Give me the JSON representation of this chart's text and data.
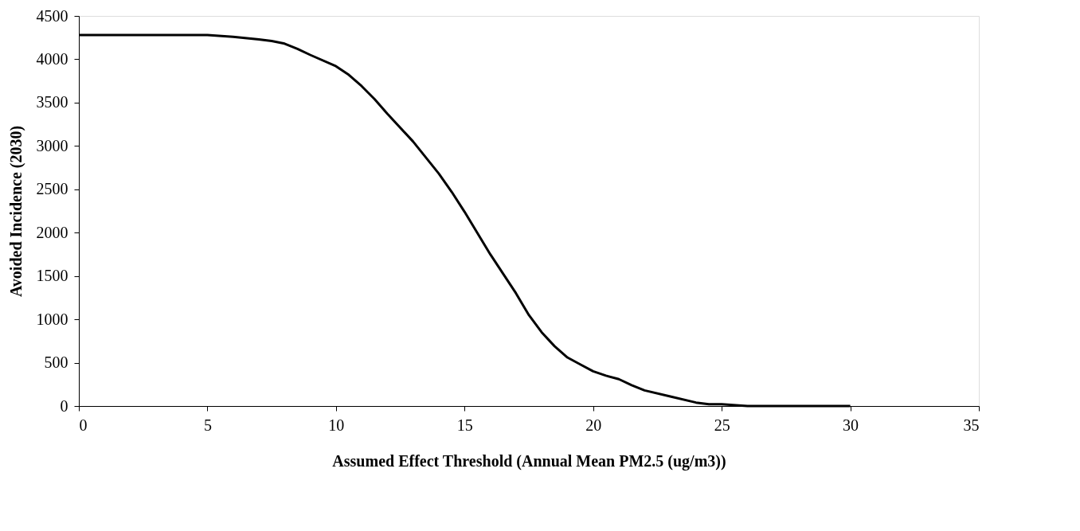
{
  "chart_data": {
    "type": "line",
    "xlabel": "Assumed Effect Threshold (Annual Mean PM2.5 (ug/m3))",
    "ylabel": "Avoided Incidence (2030)",
    "x": [
      0,
      5,
      6,
      7,
      7.5,
      8,
      8.5,
      9,
      10,
      10.5,
      11,
      11.5,
      12,
      13,
      14,
      14.5,
      15,
      16,
      17,
      17.5,
      18,
      18.5,
      19,
      19.5,
      20,
      20.5,
      21,
      21.5,
      22,
      23,
      24,
      24.5,
      25,
      26,
      30
    ],
    "series": [
      {
        "color": "#000000",
        "values": [
          4280,
          4280,
          4260,
          4230,
          4210,
          4180,
          4120,
          4050,
          3920,
          3820,
          3690,
          3540,
          3370,
          3050,
          2680,
          2470,
          2240,
          1750,
          1300,
          1050,
          850,
          690,
          560,
          480,
          400,
          350,
          310,
          240,
          180,
          110,
          40,
          20,
          20,
          0,
          0
        ]
      }
    ],
    "xlim": [
      0,
      35
    ],
    "xticks": [
      0,
      5,
      10,
      15,
      20,
      25,
      30,
      35
    ],
    "ylim": [
      0,
      4500
    ],
    "yticks": [
      0,
      500,
      1000,
      1500,
      2000,
      2500,
      3000,
      3500,
      4000,
      4500
    ],
    "grid": false,
    "legend": false,
    "marker": "none",
    "line_style": "solid"
  }
}
